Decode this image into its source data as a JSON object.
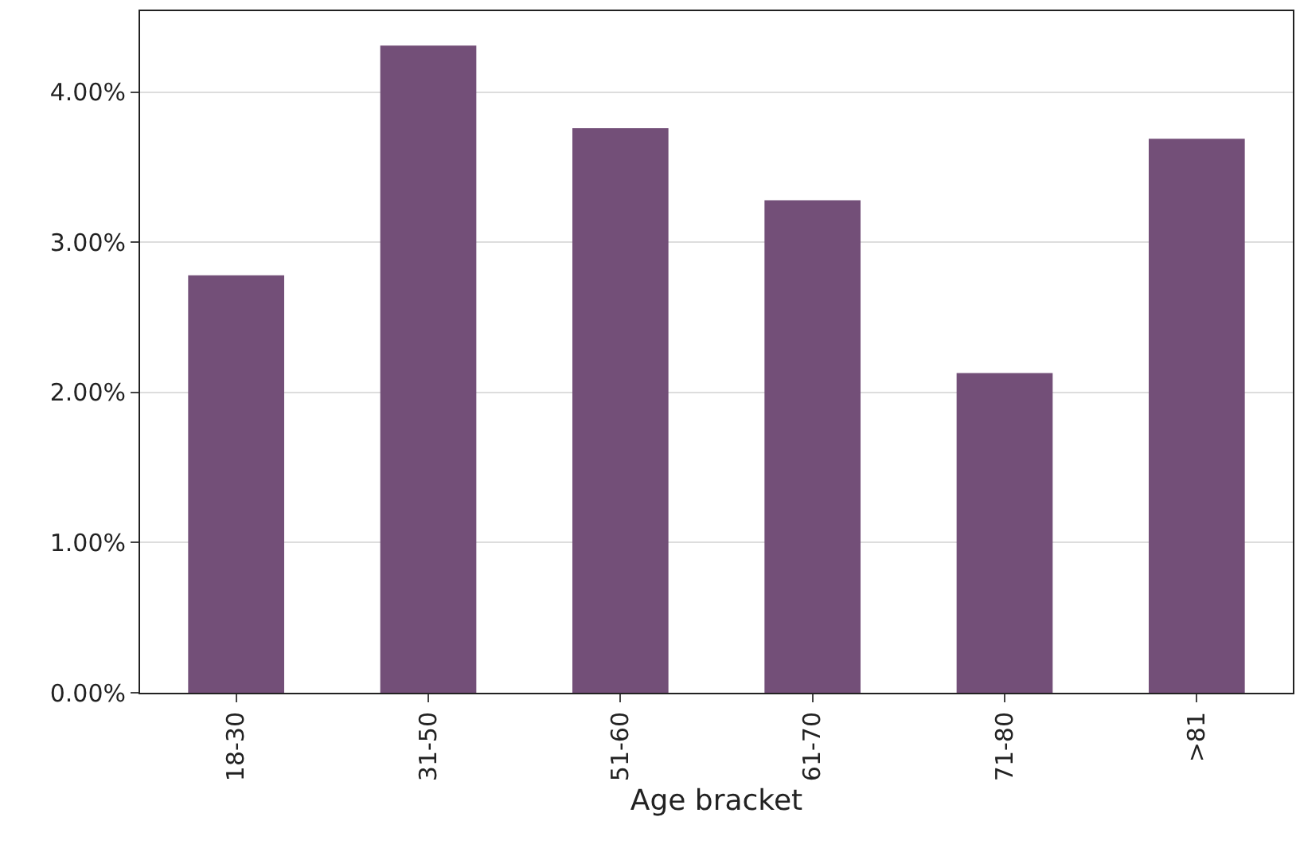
{
  "chart_data": {
    "type": "bar",
    "xlabel": "Age bracket",
    "categories": [
      "18-30",
      "31-50",
      "51-60",
      "61-70",
      "71-80",
      ">81"
    ],
    "values": [
      2.78,
      4.31,
      3.76,
      3.28,
      2.13,
      3.69
    ],
    "color": "#734f78",
    "ylim": [
      0,
      4.54
    ],
    "yticks": [
      {
        "value": 0,
        "label": "0.00%"
      },
      {
        "value": 1,
        "label": "1.00%"
      },
      {
        "value": 2,
        "label": "2.00%"
      },
      {
        "value": 3,
        "label": "3.00%"
      },
      {
        "value": 4,
        "label": "4.00%"
      }
    ],
    "grid": "y",
    "legend": false
  }
}
